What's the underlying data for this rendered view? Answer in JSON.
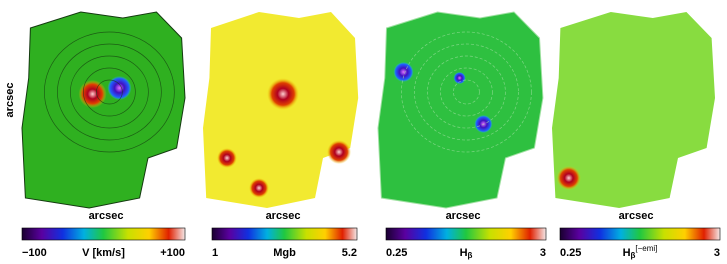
{
  "figure": {
    "y_axis_label": "arcsec",
    "panels": [
      {
        "x_axis_label": "arcsec",
        "colorbar": {
          "min": "−100",
          "label": "V  [km/s]",
          "max": "+100"
        }
      },
      {
        "x_axis_label": "arcsec",
        "colorbar": {
          "min": "1",
          "label": "Mgb",
          "max": "5.2"
        }
      },
      {
        "x_axis_label": "arcsec",
        "colorbar": {
          "min": "0.25",
          "label": "H",
          "label_sub": "β",
          "max": "3"
        }
      },
      {
        "x_axis_label": "arcsec",
        "colorbar": {
          "min": "0.25",
          "label": "H",
          "label_sub": "β",
          "label_sup": "[−emi]",
          "max": "3"
        }
      }
    ]
  }
}
